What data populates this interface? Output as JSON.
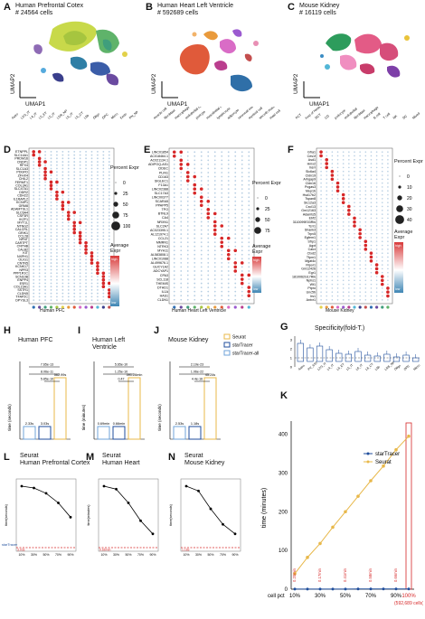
{
  "panels": {
    "A": {
      "letter": "A",
      "title": "Human Prefrontal Cotex",
      "cells": "# 24564 cells",
      "xlabel": "UMAP1",
      "ylabel": "UMAP2",
      "types": [
        "Astro",
        "L2/3_IT",
        "L4_IT",
        "L5_ET",
        "L5_IT",
        "L5/6_NP",
        "L6_IT",
        "L6_CT",
        "L6b",
        "Oligo",
        "OPC",
        "Micro",
        "Endo",
        "PN_NP"
      ]
    },
    "B": {
      "letter": "B",
      "title": "Human Heart Left Ventricle",
      "cells": "# 592689 cells",
      "xlabel": "UMAP1",
      "ylabel": "UMAP2",
      "types": [
        "muscle cell",
        "fibroblast",
        "macrophage",
        "endothelial cell",
        "pericyte",
        "mesothelial cell",
        "lymphocyte",
        "adipocyte",
        "neuronal cell",
        "myeloid cell",
        "smooth muscle",
        "mast cell"
      ]
    },
    "C": {
      "letter": "C",
      "title": "Mouse Kidney",
      "cells": "# 16119 cells",
      "xlabel": "UMAP1",
      "ylabel": "UMAP2",
      "types": [
        "PCT",
        "loop of Henle",
        "DCT",
        "CD",
        "podocyte",
        "endothelial",
        "fibroblast",
        "macrophage",
        "B cell",
        "T cell",
        "NK",
        "DC",
        "Mixed"
      ]
    },
    "D": {
      "letter": "D",
      "xlabel": "Human PFC",
      "legend_title": "Percent Expr",
      "sizes": [
        "0",
        "25",
        "50",
        "75",
        "100"
      ],
      "avg_title": "Average Expr",
      "high": "high",
      "low": "low",
      "genes": [
        "ETNPPL",
        "SLC14A1",
        "PRDM16",
        "CNDP1",
        "RFX4",
        "SLC1A3",
        "PDGFD",
        "ZFHX4",
        "CHIL2",
        "FERMT1",
        "COL3A1",
        "SLC47A1",
        "DDR2",
        "CDH22",
        "IL1RAPL2",
        "KCNIP1",
        "GRM8",
        "ADAMTSL1",
        "SLC6A4",
        "CSF3R",
        "IKZF1",
        "MYT1L",
        "NTNG2",
        "CALCRL",
        "GRIK1",
        "CCL28",
        "NPNT",
        "CARTPT",
        "CNTNB",
        "CALB2",
        "KIT",
        "NXPH1",
        "OLIG1",
        "CNTN5",
        "KCNK17",
        "NPR3",
        "PPP1R1C",
        "SCN10B",
        "ENPP4",
        "ESR1",
        "COL15A1",
        "SSTR1",
        "CLDN5",
        "TFAP2C",
        "DPYSL3"
      ]
    },
    "E": {
      "letter": "E",
      "xlabel": "Human Heart Left Ventricle",
      "legend_title": "Percent Expr",
      "sizes": [
        "0",
        "25",
        "50",
        "75"
      ],
      "avg_title": "Average Expr",
      "high": "high",
      "low": "low",
      "genes": [
        "LINC01854",
        "AC018464.1",
        "AC021134.1",
        "ADIPOQ-AS1",
        "CIDEC",
        "PLIN1",
        "CD163",
        "SIGLEC1",
        "F13A1",
        "LINC02388",
        "SLC17A3",
        "LINC00377",
        "SCARA5",
        "PPAPP5",
        "TPO",
        "BTNL9",
        "CA4",
        "NRXN1",
        "SLC2A7",
        "AC023395.1",
        "AL121974.1",
        "CCL21",
        "MMRN1",
        "NTRK3",
        "MYH11",
        "AL583808.1",
        "LINC01088",
        "AL499676.1",
        "GUCY1A2",
        "ADCYAP1",
        "CPA3",
        "SCL118",
        "THEMIS",
        "DTHD1",
        "IL1A",
        "HAS1",
        "CLDN1"
      ]
    },
    "F": {
      "letter": "F",
      "xlabel": "Mouse Kidney",
      "legend_title": "Percent Expr",
      "sizes": [
        "0",
        "10",
        "20",
        "30",
        "40"
      ],
      "avg_title": "Average Expr",
      "high": "high",
      "low": "low",
      "genes": [
        "Gfra1",
        "Ces1f",
        "Asd1",
        "Hmx2",
        "Insrr",
        "Slc6a4",
        "Cldn19",
        "Arhgap9",
        "Cldn16",
        "Pcgas3",
        "Mep1b",
        "Hsd17b2",
        "Tspan8",
        "Slc12a3",
        "Cxcl13",
        "Gm12163",
        "Adamts5",
        "Ebf2",
        "3110099E03Rik",
        "Tcrr1",
        "Shank3",
        "Trpv5",
        "Egfem1",
        "Sfrp1",
        "Agxt",
        "Calcr",
        "Ctxd2",
        "Tfpm1",
        "Mgat4c",
        "Ripor1",
        "Gm12426",
        "Egr1",
        "1810062G17Rik",
        "Nphs1",
        "Wt1",
        "Ptpro",
        "Unc5b",
        "Irs1",
        "Antxr1"
      ]
    },
    "H": {
      "letter": "H",
      "title": "Human PFC",
      "ylabel": "time (seconds)",
      "bars": [
        {
          "name": "Seurat",
          "value": 562.99,
          "label": "562.99s"
        },
        {
          "name": "starTracer",
          "value": 3.03,
          "label": "3.03s"
        },
        {
          "name": "starTracer-all",
          "value": 2.33,
          "label": "2.33s"
        }
      ],
      "pvals": [
        "7.65e-13",
        "8.06e-11",
        "5.85e-10"
      ]
    },
    "I": {
      "letter": "I",
      "title": "Human Left Ventricle",
      "ylabel": "time (minutes)",
      "bars": [
        {
          "name": "Seurat",
          "value": 391.26,
          "label": "391.26min"
        },
        {
          "name": "starTracer",
          "value": 0.66,
          "label": "0.66min"
        },
        {
          "name": "starTracer-all",
          "value": 0.69,
          "label": "0.69min"
        }
      ],
      "pvals": [
        "5.65e-10",
        "1.25e-10",
        "0.47"
      ]
    },
    "J": {
      "letter": "J",
      "title": "Mouse Kidney",
      "ylabel": "time (seconds)",
      "bars": [
        {
          "name": "Seurat",
          "value": 45.24,
          "label": "45.24s"
        },
        {
          "name": "starTracer",
          "value": 1.18,
          "label": "1.18s"
        },
        {
          "name": "starTracer-all",
          "value": 2.53,
          "label": "2.53s"
        }
      ],
      "pvals": [
        "2.19e-23",
        "1.06e-22",
        "4.4e-16"
      ]
    },
    "legend_HJ": {
      "items": [
        "Seurat",
        "starTracer",
        "starTracer-all"
      ]
    },
    "G": {
      "letter": "G",
      "title": "Specificity(fold-T.)",
      "categories": [
        "Astro",
        "PV_SST",
        "L2/3_IT",
        "L4_IT",
        "L5_ET",
        "L5_IT",
        "L6_IT",
        "L6_CT",
        "L6b",
        "L5/6_NP",
        "Oligo",
        "OPC",
        "Micro"
      ],
      "values": [
        2.6,
        2.1,
        2.3,
        1.9,
        1.5,
        1.4,
        1.7,
        1.3,
        1.2,
        1.4,
        1.1,
        1.3,
        1.0
      ],
      "yticks": [
        "0",
        "1",
        "2",
        "3"
      ]
    },
    "K": {
      "letter": "K",
      "ylabel": "time (minutes)",
      "xlabel": "cell pct",
      "xticks": [
        "10%",
        "30%",
        "50%",
        "70%",
        "90%",
        "100%"
      ],
      "yticks": [
        "0",
        "100",
        "200",
        "300",
        "400"
      ],
      "highlight_label": "(592,689 cells)",
      "legend": [
        "starTracer",
        "Seurat"
      ],
      "point_labels": [
        "0.20min",
        "0.17min",
        "0.41min",
        "0.58min",
        "0.66min"
      ]
    },
    "L": {
      "letter": "L",
      "title": "Seurat\nHuman Prefrontal Cortex",
      "title1": "Seurat",
      "title2": "Human Prefrontal Cortex",
      "ylabel": "time(seconds)",
      "baseline": "starTracer",
      "baseline_val": "3.03s",
      "xticks": [
        "10%",
        "30%",
        "50%",
        "70%",
        "90%"
      ]
    },
    "M": {
      "letter": "M",
      "title1": "Seurat",
      "title2": "Human Heart",
      "ylabel": "time(minutes)",
      "baseline_val": "0.66min",
      "xticks": [
        "10%",
        "30%",
        "50%",
        "70%",
        "90%"
      ]
    },
    "N": {
      "letter": "N",
      "title1": "Seurat",
      "title2": "Mouse Kidney",
      "ylabel": "time(seconds)",
      "baseline_val": "1.18s",
      "xticks": [
        "10%",
        "30%",
        "50%",
        "70%",
        "90%"
      ]
    }
  },
  "chart_data": [
    {
      "type": "bar",
      "id": "H",
      "categories": [
        "starTracer-all",
        "starTracer",
        "Seurat"
      ],
      "values": [
        2.33,
        3.03,
        562.99
      ],
      "ylabel": "time (seconds)",
      "title": "Human PFC"
    },
    {
      "type": "bar",
      "id": "I",
      "categories": [
        "starTracer-all",
        "starTracer",
        "Seurat"
      ],
      "values": [
        0.69,
        0.66,
        391.26
      ],
      "ylabel": "time (minutes)",
      "title": "Human Left Ventricle"
    },
    {
      "type": "bar",
      "id": "J",
      "categories": [
        "starTracer-all",
        "starTracer",
        "Seurat"
      ],
      "values": [
        2.53,
        1.18,
        45.24
      ],
      "ylabel": "time (seconds)",
      "title": "Mouse Kidney"
    },
    {
      "type": "line",
      "id": "K",
      "x": [
        10,
        20,
        30,
        40,
        50,
        60,
        70,
        80,
        90,
        100
      ],
      "ylabel": "time (minutes)",
      "xlabel": "cell pct",
      "series": [
        {
          "name": "Seurat",
          "values": [
            40,
            82,
            118,
            160,
            200,
            240,
            280,
            318,
            360,
            395
          ]
        },
        {
          "name": "starTracer",
          "values": [
            0.2,
            0.18,
            0.17,
            0.3,
            0.41,
            0.5,
            0.58,
            0.62,
            0.66,
            0.66
          ]
        }
      ],
      "ylim": [
        0,
        420
      ]
    },
    {
      "type": "line",
      "id": "L",
      "x": [
        10,
        30,
        50,
        70,
        90
      ],
      "series": [
        {
          "name": "Seurat",
          "values": [
            1.0,
            0.97,
            0.88,
            0.72,
            0.48
          ]
        }
      ]
    },
    {
      "type": "line",
      "id": "M",
      "x": [
        10,
        30,
        50,
        70,
        90
      ],
      "series": [
        {
          "name": "Seurat",
          "values": [
            1.0,
            0.95,
            0.72,
            0.42,
            0.2
          ]
        }
      ]
    },
    {
      "type": "line",
      "id": "N",
      "x": [
        10,
        30,
        50,
        70,
        90
      ],
      "series": [
        {
          "name": "Seurat",
          "values": [
            1.0,
            0.92,
            0.62,
            0.36,
            0.2
          ]
        }
      ]
    }
  ],
  "colors": {
    "seurat": "#e8b84a",
    "startracer": "#1f4e9c",
    "startracer_all": "#6fa3d9",
    "red": "#d62728",
    "dot": "#b8cfe3"
  }
}
